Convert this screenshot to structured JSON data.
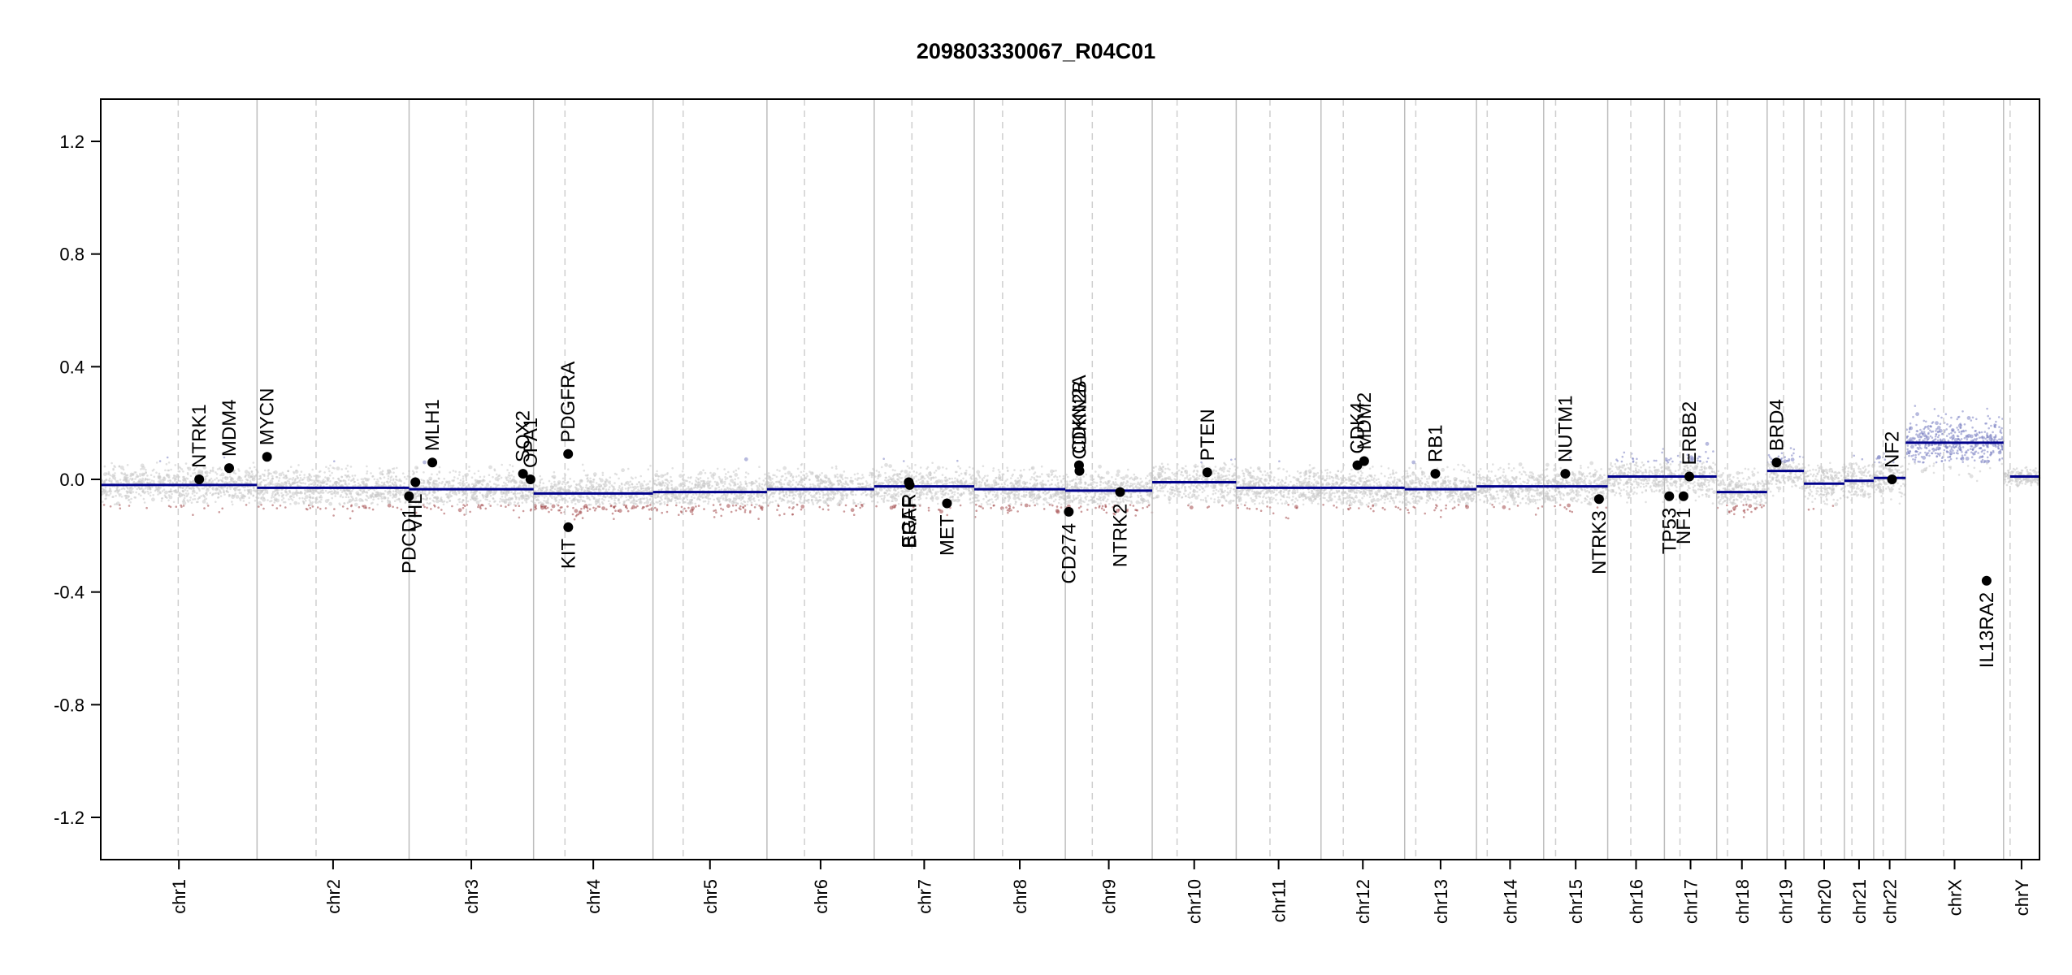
{
  "chart_data": {
    "type": "scatter",
    "title": "209803330067_R04C01",
    "xlabel": "",
    "ylabel": "",
    "ylim": [
      -1.35,
      1.35
    ],
    "yticks": [
      -1.2,
      -0.8,
      -0.4,
      0.0,
      0.4,
      0.8,
      1.2
    ],
    "ytick_labels": [
      "-1.2",
      "-0.8",
      "-0.4",
      "0.0",
      "0.4",
      "0.8",
      "1.2"
    ],
    "grid": false,
    "colors": {
      "segment": "#00008b",
      "gain": "#7b82c2",
      "loss": "#a2484a",
      "neutral": "#c8c8c8",
      "boundary": "#bdbdbd",
      "centromere": "#cfcfcf",
      "gene_point": "#000000"
    },
    "chromosomes": [
      {
        "name": "chr1",
        "start": 0,
        "end": 248.96,
        "centromere": 123.4,
        "label": "chr1"
      },
      {
        "name": "chr2",
        "start": 248.96,
        "end": 491.15,
        "centromere": 342.96,
        "label": "chr2"
      },
      {
        "name": "chr3",
        "start": 491.15,
        "end": 689.45,
        "centromere": 582.15,
        "label": "chr3"
      },
      {
        "name": "chr4",
        "start": 689.45,
        "end": 879.67,
        "centromere": 739.45,
        "label": "chr4"
      },
      {
        "name": "chr5",
        "start": 879.67,
        "end": 1061.21,
        "centromere": 927.67,
        "label": "chr5"
      },
      {
        "name": "chr6",
        "start": 1061.21,
        "end": 1232.02,
        "centromere": 1121.01,
        "label": "chr6"
      },
      {
        "name": "chr7",
        "start": 1232.02,
        "end": 1391.36,
        "centromere": 1292.12,
        "label": "chr7"
      },
      {
        "name": "chr8",
        "start": 1391.36,
        "end": 1536.5,
        "centromere": 1436.56,
        "label": "chr8"
      },
      {
        "name": "chr9",
        "start": 1536.5,
        "end": 1674.9,
        "centromere": 1579.5,
        "label": "chr9"
      },
      {
        "name": "chr10",
        "start": 1674.9,
        "end": 1808.69,
        "centromere": 1714.5,
        "label": "chr10"
      },
      {
        "name": "chr11",
        "start": 1808.69,
        "end": 1943.78,
        "centromere": 1862.49,
        "label": "chr11"
      },
      {
        "name": "chr12",
        "start": 1943.78,
        "end": 2077.06,
        "centromere": 1979.28,
        "label": "chr12"
      },
      {
        "name": "chr13",
        "start": 2077.06,
        "end": 2191.42,
        "centromere": 2094.76,
        "label": "chr13"
      },
      {
        "name": "chr14",
        "start": 2191.42,
        "end": 2298.46,
        "centromere": 2208.52,
        "label": "chr14"
      },
      {
        "name": "chr15",
        "start": 2298.46,
        "end": 2400.45,
        "centromere": 2317.46,
        "label": "chr15"
      },
      {
        "name": "chr16",
        "start": 2400.45,
        "end": 2490.79,
        "centromere": 2437.25,
        "label": "chr16"
      },
      {
        "name": "chr17",
        "start": 2490.79,
        "end": 2574.05,
        "centromere": 2515.59,
        "label": "chr17"
      },
      {
        "name": "chr18",
        "start": 2574.05,
        "end": 2654.42,
        "centromere": 2591.35,
        "label": "chr18"
      },
      {
        "name": "chr19",
        "start": 2654.42,
        "end": 2713.04,
        "centromere": 2680.62,
        "label": "chr19"
      },
      {
        "name": "chr20",
        "start": 2713.04,
        "end": 2777.48,
        "centromere": 2740.54,
        "label": "chr20"
      },
      {
        "name": "chr21",
        "start": 2777.48,
        "end": 2824.19,
        "centromere": 2789.48,
        "label": "chr21"
      },
      {
        "name": "chr22",
        "start": 2824.19,
        "end": 2875.01,
        "centromere": 2839.19,
        "label": "chr22"
      },
      {
        "name": "chrX",
        "start": 2875.01,
        "end": 3031.05,
        "centromere": 2935.61,
        "label": "chrX"
      },
      {
        "name": "chrY",
        "start": 3031.05,
        "end": 3088.28,
        "centromere": 3041.45,
        "label": "chrY"
      }
    ],
    "segments": [
      {
        "chr": "chr1",
        "x0": 0,
        "x1": 248.96,
        "y": -0.02
      },
      {
        "chr": "chr2",
        "x0": 248.96,
        "x1": 491.15,
        "y": -0.03
      },
      {
        "chr": "chr3",
        "x0": 491.15,
        "x1": 689.45,
        "y": -0.035
      },
      {
        "chr": "chr4",
        "x0": 689.45,
        "x1": 879.67,
        "y": -0.05
      },
      {
        "chr": "chr5",
        "x0": 879.67,
        "x1": 1061.21,
        "y": -0.045
      },
      {
        "chr": "chr6",
        "x0": 1061.21,
        "x1": 1232.02,
        "y": -0.035
      },
      {
        "chr": "chr7",
        "x0": 1232.02,
        "x1": 1391.36,
        "y": -0.025
      },
      {
        "chr": "chr8",
        "x0": 1391.36,
        "x1": 1536.5,
        "y": -0.035
      },
      {
        "chr": "chr9",
        "x0": 1536.5,
        "x1": 1674.9,
        "y": -0.04
      },
      {
        "chr": "chr10",
        "x0": 1674.9,
        "x1": 1808.69,
        "y": -0.01
      },
      {
        "chr": "chr11",
        "x0": 1808.69,
        "x1": 1943.78,
        "y": -0.03
      },
      {
        "chr": "chr12",
        "x0": 1943.78,
        "x1": 2077.06,
        "y": -0.03
      },
      {
        "chr": "chr13",
        "x0": 2077.06,
        "x1": 2191.42,
        "y": -0.035
      },
      {
        "chr": "chr14",
        "x0": 2191.42,
        "x1": 2298.46,
        "y": -0.025
      },
      {
        "chr": "chr15",
        "x0": 2298.46,
        "x1": 2400.45,
        "y": -0.025
      },
      {
        "chr": "chr16",
        "x0": 2400.45,
        "x1": 2490.79,
        "y": 0.01
      },
      {
        "chr": "chr17",
        "x0": 2490.79,
        "x1": 2574.05,
        "y": 0.01
      },
      {
        "chr": "chr18",
        "x0": 2574.05,
        "x1": 2654.42,
        "y": -0.045
      },
      {
        "chr": "chr19",
        "x0": 2654.42,
        "x1": 2713.04,
        "y": 0.03
      },
      {
        "chr": "chr20",
        "x0": 2713.04,
        "x1": 2777.48,
        "y": -0.015
      },
      {
        "chr": "chr21",
        "x0": 2777.48,
        "x1": 2824.19,
        "y": -0.005
      },
      {
        "chr": "chr22",
        "x0": 2824.19,
        "x1": 2875.01,
        "y": 0.005
      },
      {
        "chr": "chrX",
        "x0": 2875.01,
        "x1": 3031.05,
        "y": 0.13
      },
      {
        "chr": "chrY",
        "x0": 3041.45,
        "x1": 3088.28,
        "y": 0.01
      }
    ],
    "genes": [
      {
        "name": "NTRK1",
        "x": 156.8,
        "y": 0.0,
        "label_side": "above"
      },
      {
        "name": "MDM4",
        "x": 204.5,
        "y": 0.04,
        "label_side": "above"
      },
      {
        "name": "MYCN",
        "x": 264.9,
        "y": 0.08,
        "label_side": "above"
      },
      {
        "name": "PDCD1",
        "x": 491.0,
        "y": -0.06,
        "label_side": "below"
      },
      {
        "name": "VHL",
        "x": 501.2,
        "y": -0.01,
        "label_side": "below"
      },
      {
        "name": "MLH1",
        "x": 528.2,
        "y": 0.06,
        "label_side": "above"
      },
      {
        "name": "SOX2",
        "x": 672.6,
        "y": 0.02,
        "label_side": "above"
      },
      {
        "name": "OPA1",
        "x": 684.5,
        "y": 0.0,
        "label_side": "above"
      },
      {
        "name": "PDGFRA",
        "x": 744.5,
        "y": 0.09,
        "label_side": "above"
      },
      {
        "name": "KIT",
        "x": 744.7,
        "y": -0.17,
        "label_side": "below"
      },
      {
        "name": "EGFR",
        "x": 1287.1,
        "y": -0.01,
        "label_side": "below"
      },
      {
        "name": "BRAF",
        "x": 1288.5,
        "y": -0.02,
        "label_side": "below"
      },
      {
        "name": "MET",
        "x": 1348.0,
        "y": -0.085,
        "label_side": "below"
      },
      {
        "name": "CD274",
        "x": 1542.0,
        "y": -0.115,
        "label_side": "below"
      },
      {
        "name": "CDKN2A",
        "x": 1558.3,
        "y": 0.05,
        "label_side": "above"
      },
      {
        "name": "CDKN2B",
        "x": 1559.0,
        "y": 0.03,
        "label_side": "above"
      },
      {
        "name": "NTRK2",
        "x": 1623.7,
        "y": -0.045,
        "label_side": "below"
      },
      {
        "name": "PTEN",
        "x": 1762.6,
        "y": 0.025,
        "label_side": "above"
      },
      {
        "name": "CDK4",
        "x": 2001.7,
        "y": 0.05,
        "label_side": "above"
      },
      {
        "name": "MDM2",
        "x": 2012.5,
        "y": 0.065,
        "label_side": "above"
      },
      {
        "name": "RB1",
        "x": 2125.9,
        "y": 0.02,
        "label_side": "above"
      },
      {
        "name": "NUTM1",
        "x": 2332.9,
        "y": 0.02,
        "label_side": "above"
      },
      {
        "name": "NTRK3",
        "x": 2386.6,
        "y": -0.07,
        "label_side": "below"
      },
      {
        "name": "TP53",
        "x": 2498.5,
        "y": -0.06,
        "label_side": "below"
      },
      {
        "name": "NF1",
        "x": 2521.2,
        "y": -0.06,
        "label_side": "below"
      },
      {
        "name": "ERBB2",
        "x": 2530.5,
        "y": 0.01,
        "label_side": "above"
      },
      {
        "name": "BRD4",
        "x": 2669.5,
        "y": 0.06,
        "label_side": "above"
      },
      {
        "name": "NF2",
        "x": 2853.4,
        "y": 0.0,
        "label_side": "above"
      },
      {
        "name": "IL13RA2",
        "x": 3004.0,
        "y": -0.36,
        "label_side": "below"
      }
    ]
  }
}
